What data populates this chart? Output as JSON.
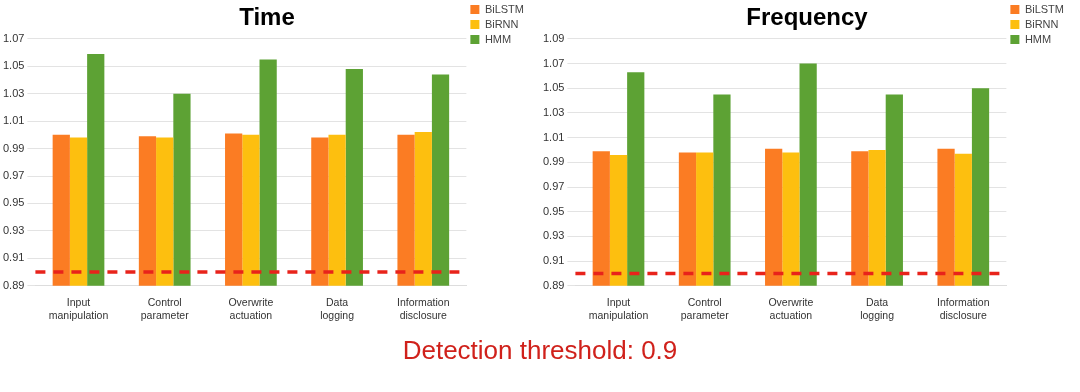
{
  "chart_data": [
    {
      "type": "bar",
      "title": "Time",
      "categories": [
        "Input manipulation",
        "Control parameter",
        "Overwrite actuation",
        "Data logging",
        "Information disclosure"
      ],
      "series": [
        {
          "name": "BiLSTM",
          "color": "#fb7c23",
          "values": [
            1.0,
            0.999,
            1.001,
            0.998,
            1.0
          ]
        },
        {
          "name": "BiRNN",
          "color": "#fdbf0f",
          "values": [
            0.998,
            0.998,
            1.0,
            1.0,
            1.002
          ]
        },
        {
          "name": "HMM",
          "color": "#5da234",
          "values": [
            1.059,
            1.03,
            1.055,
            1.048,
            1.044
          ]
        }
      ],
      "ylim": [
        0.89,
        1.07
      ],
      "yticks": [
        0.89,
        0.91,
        0.93,
        0.95,
        0.97,
        0.99,
        1.01,
        1.03,
        1.05,
        1.07
      ],
      "grid": "y",
      "legend": "top right",
      "ref_lines": [
        {
          "axis": "y",
          "value": 0.9,
          "color": "#e8231b",
          "line_style": "dashed"
        }
      ],
      "annotations": [
        "Detection threshold: 0.9"
      ]
    },
    {
      "type": "bar",
      "title": "Frequency",
      "categories": [
        "Input manipulation",
        "Control parameter",
        "Overwrite actuation",
        "Data logging",
        "Information disclosure"
      ],
      "series": [
        {
          "name": "BiLSTM",
          "color": "#fb7c23",
          "values": [
            0.999,
            0.998,
            1.001,
            0.999,
            1.001
          ]
        },
        {
          "name": "BiRNN",
          "color": "#fdbf0f",
          "values": [
            0.996,
            0.998,
            0.998,
            1.0,
            0.997
          ]
        },
        {
          "name": "HMM",
          "color": "#5da234",
          "values": [
            1.063,
            1.045,
            1.07,
            1.045,
            1.05
          ]
        }
      ],
      "ylim": [
        0.89,
        1.09
      ],
      "yticks": [
        0.89,
        0.91,
        0.93,
        0.95,
        0.97,
        0.99,
        1.01,
        1.03,
        1.05,
        1.07,
        1.09
      ],
      "grid": "y",
      "legend": "top right",
      "ref_lines": [
        {
          "axis": "y",
          "value": 0.9,
          "color": "#e8231b",
          "line_style": "dashed"
        }
      ]
    }
  ]
}
